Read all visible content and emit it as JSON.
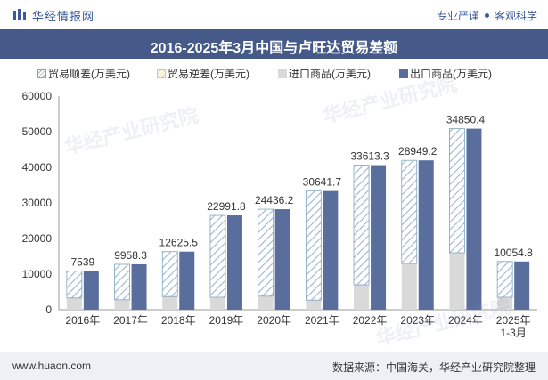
{
  "header": {
    "brand": "华经情报网",
    "tag1": "专业严谨",
    "tag2": "客观科学"
  },
  "colors": {
    "title_bg": "#455a89",
    "export_bar": "#5a6e9e",
    "import_bar": "#d9d9d9",
    "surplus_hatch": "#9cb6cf"
  },
  "legend": {
    "surplus": "贸易顺差(万美元)",
    "deficit": "贸易逆差(万美元)",
    "imports": "进口商品(万美元)",
    "exports": "出口商品(万美元)"
  },
  "chart_data": {
    "type": "bar",
    "title": "2016-2025年3月中国与卢旺达贸易差额",
    "categories": [
      "2016年",
      "2017年",
      "2018年",
      "2019年",
      "2020年",
      "2021年",
      "2022年",
      "2023年",
      "2024年",
      "2025年\n1-3月"
    ],
    "series": [
      {
        "name": "贸易顺差(万美元)",
        "values": [
          7539,
          9958.3,
          12625.5,
          22991.8,
          24436.2,
          30641.7,
          33613.3,
          28949.2,
          34850.4,
          10054.8
        ]
      },
      {
        "name": "贸易逆差(万美元)",
        "values": [
          0,
          0,
          0,
          0,
          0,
          0,
          0,
          0,
          0,
          0
        ]
      },
      {
        "name": "进口商品(万美元)",
        "values": [
          3300,
          2800,
          3700,
          3500,
          3800,
          2700,
          7000,
          13000,
          16000,
          3500
        ]
      },
      {
        "name": "出口商品(万美元)",
        "values": [
          10839,
          12758.3,
          16325.5,
          26491.8,
          28236.2,
          33341.7,
          40613.3,
          41949.2,
          50850.4,
          13554.8
        ]
      }
    ],
    "data_labels": [
      "7539",
      "9958.3",
      "12625.5",
      "22991.8",
      "24436.2",
      "30641.7",
      "33613.3",
      "28949.2",
      "34850.4",
      "10054.8"
    ],
    "yticks": [
      "0",
      "10000",
      "20000",
      "30000",
      "40000",
      "50000",
      "60000"
    ],
    "ylim": [
      0,
      60000
    ],
    "grid": false,
    "legend_position": "top"
  },
  "footer": {
    "website": "www.huaon.com",
    "source": "数据来源：中国海关，华经产业研究院整理"
  }
}
